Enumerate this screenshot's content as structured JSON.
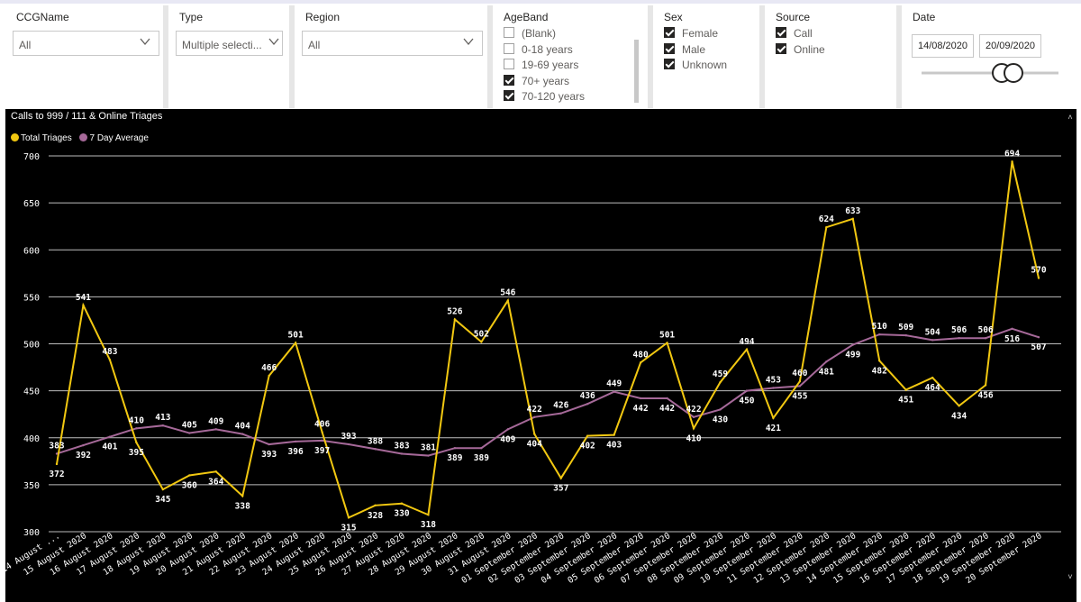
{
  "slicers": {
    "ccg": {
      "title": "CCGName",
      "value": "All"
    },
    "type": {
      "title": "Type",
      "value": "Multiple selecti..."
    },
    "region": {
      "title": "Region",
      "value": "All"
    },
    "ageband": {
      "title": "AgeBand",
      "items": [
        {
          "label": "(Blank)",
          "checked": false
        },
        {
          "label": "0-18 years",
          "checked": false
        },
        {
          "label": "19-69 years",
          "checked": false
        },
        {
          "label": "70+ years",
          "checked": true
        },
        {
          "label": "70-120 years",
          "checked": true
        }
      ]
    },
    "sex": {
      "title": "Sex",
      "items": [
        {
          "label": "Female",
          "checked": true
        },
        {
          "label": "Male",
          "checked": true
        },
        {
          "label": "Unknown",
          "checked": true
        }
      ]
    },
    "source": {
      "title": "Source",
      "items": [
        {
          "label": "Call",
          "checked": true
        },
        {
          "label": "Online",
          "checked": true
        }
      ]
    },
    "date": {
      "title": "Date",
      "start": "14/08/2020",
      "end": "20/09/2020"
    }
  },
  "chart_data": {
    "type": "line",
    "title": "Calls to 999 / 111 & Online Triages",
    "legend_position": "top-left",
    "ylim": [
      300,
      700
    ],
    "yticks": [
      300,
      350,
      400,
      450,
      500,
      550,
      600,
      650,
      700
    ],
    "grid": true,
    "categories": [
      "14 August ...",
      "15 August 2020",
      "16 August 2020",
      "17 August 2020",
      "18 August 2020",
      "19 August 2020",
      "20 August 2020",
      "21 August 2020",
      "22 August 2020",
      "23 August 2020",
      "24 August 2020",
      "25 August 2020",
      "26 August 2020",
      "27 August 2020",
      "28 August 2020",
      "29 August 2020",
      "30 August 2020",
      "31 August 2020",
      "01 September 2020",
      "02 September 2020",
      "03 September 2020",
      "04 September 2020",
      "05 September 2020",
      "06 September 2020",
      "07 September 2020",
      "08 September 2020",
      "09 September 2020",
      "10 September 2020",
      "11 September 2020",
      "12 September 2020",
      "13 September 2020",
      "14 September 2020",
      "15 September 2020",
      "16 September 2020",
      "17 September 2020",
      "18 September 2020",
      "19 September 2020",
      "20 September 2020"
    ],
    "series": [
      {
        "name": "Total Triages",
        "color": "#f2c811",
        "values": [
          372,
          541,
          483,
          395,
          345,
          360,
          364,
          338,
          466,
          501,
          406,
          315,
          328,
          330,
          318,
          526,
          502,
          546,
          404,
          357,
          402,
          403,
          480,
          501,
          410,
          459,
          494,
          421,
          460,
          624,
          633,
          482,
          451,
          464,
          434,
          456,
          694,
          570
        ]
      },
      {
        "name": "7 Day Average",
        "color": "#a66999",
        "values": [
          383,
          392,
          401,
          410,
          413,
          405,
          409,
          404,
          393,
          396,
          397,
          393,
          388,
          383,
          381,
          389,
          389,
          409,
          422,
          426,
          436,
          449,
          442,
          442,
          422,
          430,
          450,
          453,
          455,
          481,
          499,
          510,
          509,
          504,
          506,
          506,
          516,
          507
        ]
      }
    ]
  }
}
